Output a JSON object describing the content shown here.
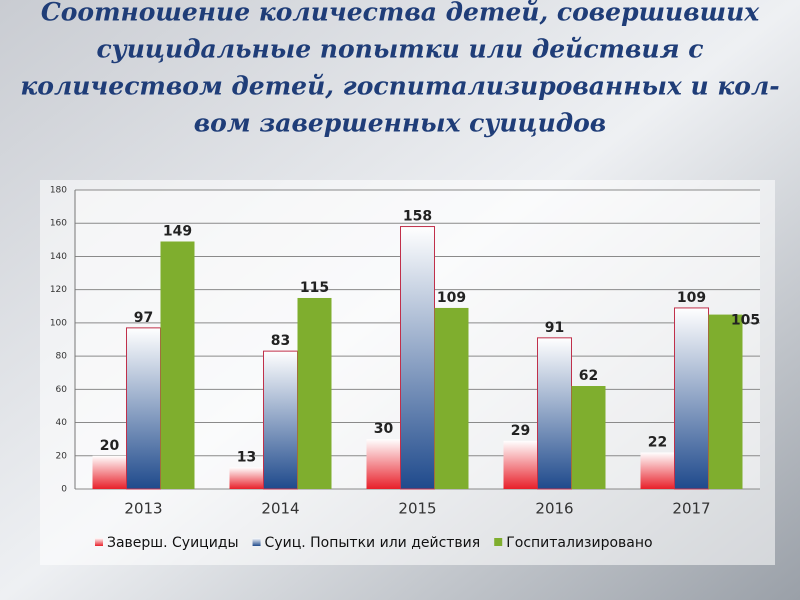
{
  "chart_data": {
    "type": "bar",
    "title": [
      "Соотношение количества детей, совершивших",
      "суицидальные попытки или действия с",
      "количеством детей, госпитализированных и кол-",
      "вом завершенных суицидов"
    ],
    "categories": [
      "2013",
      "2014",
      "2015",
      "2016",
      "2017"
    ],
    "series": [
      {
        "name": "Заверш. Суициды",
        "color": "#e8202a",
        "values": [
          20,
          13,
          30,
          29,
          22
        ]
      },
      {
        "name": "Суиц. Попытки или действия",
        "color": "#1f4a8c",
        "values": [
          97,
          83,
          158,
          91,
          109
        ]
      },
      {
        "name": "Госпитализировано",
        "color": "#7fae2e",
        "values": [
          149,
          115,
          109,
          62,
          105
        ]
      }
    ],
    "ylim": [
      0,
      180
    ],
    "yticks": [
      0,
      20,
      40,
      60,
      80,
      100,
      120,
      140,
      160,
      180
    ],
    "grid": true
  }
}
